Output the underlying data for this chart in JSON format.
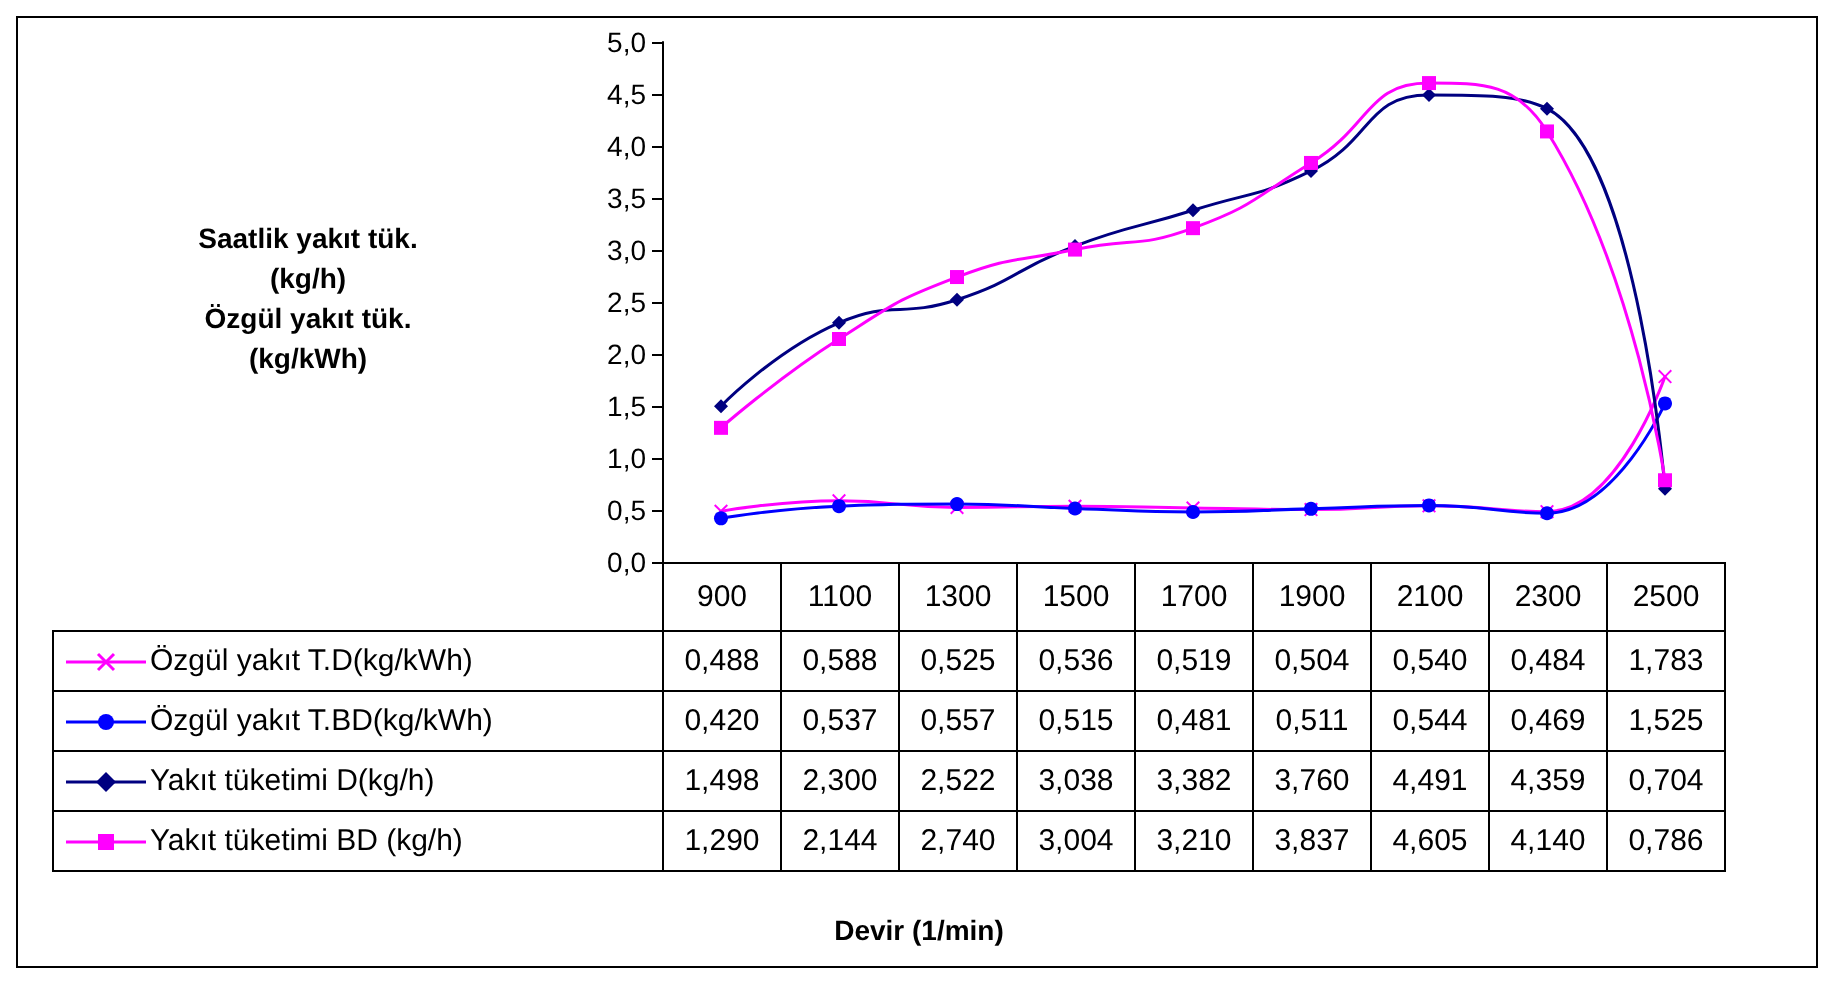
{
  "chart_data": {
    "type": "line",
    "annotations": [
      "Saatlik yakıt tük.\n(kg/h)\nÖzgül yakıt tük.\n(kg/kWh)",
      "Devir (1/min)"
    ],
    "categories": [
      "900",
      "1100",
      "1300",
      "1500",
      "1700",
      "1900",
      "2100",
      "2300",
      "2500"
    ],
    "series": [
      {
        "name": "Özgül yakıt T.D(kg/kWh)",
        "color": "#ff00ff",
        "marker": "cross",
        "values": [
          0.488,
          0.588,
          0.525,
          0.536,
          0.519,
          0.504,
          0.54,
          0.484,
          1.783
        ],
        "value_labels": [
          "0,488",
          "0,588",
          "0,525",
          "0,536",
          "0,519",
          "0,504",
          "0,540",
          "0,484",
          "1,783"
        ]
      },
      {
        "name": "Özgül yakıt T.BD(kg/kWh)",
        "color": "#0000ff",
        "marker": "circle",
        "values": [
          0.42,
          0.537,
          0.557,
          0.515,
          0.481,
          0.511,
          0.544,
          0.469,
          1.525
        ],
        "value_labels": [
          "0,420",
          "0,537",
          "0,557",
          "0,515",
          "0,481",
          "0,511",
          "0,544",
          "0,469",
          "1,525"
        ]
      },
      {
        "name": "Yakıt tüketimi D(kg/h)",
        "color": "#000080",
        "marker": "diamond",
        "values": [
          1.498,
          2.3,
          2.522,
          3.038,
          3.382,
          3.76,
          4.491,
          4.359,
          0.704
        ],
        "value_labels": [
          "1,498",
          "2,300",
          "2,522",
          "3,038",
          "3,382",
          "3,760",
          "4,491",
          "4,359",
          "0,704"
        ]
      },
      {
        "name": "Yakıt tüketimi BD (kg/h)",
        "color": "#ff00ff",
        "marker": "square",
        "values": [
          1.29,
          2.144,
          2.74,
          3.004,
          3.21,
          3.837,
          4.605,
          4.14,
          0.786
        ],
        "value_labels": [
          "1,290",
          "2,144",
          "2,740",
          "3,004",
          "3,210",
          "3,837",
          "4,605",
          "4,140",
          "0,786"
        ]
      }
    ],
    "ylim": [
      0,
      5
    ],
    "yticks": [
      {
        "value": 0,
        "label": "0,0"
      },
      {
        "value": 0.5,
        "label": "0,5"
      },
      {
        "value": 1,
        "label": "1,0"
      },
      {
        "value": 1.5,
        "label": "1,5"
      },
      {
        "value": 2,
        "label": "2,0"
      },
      {
        "value": 2.5,
        "label": "2,5"
      },
      {
        "value": 3,
        "label": "3,0"
      },
      {
        "value": 3.5,
        "label": "3,5"
      },
      {
        "value": 4,
        "label": "4,0"
      },
      {
        "value": 4.5,
        "label": "4,5"
      },
      {
        "value": 5,
        "label": "5,0"
      }
    ],
    "grid": false,
    "legend": "bottom",
    "line_style": "solid"
  }
}
